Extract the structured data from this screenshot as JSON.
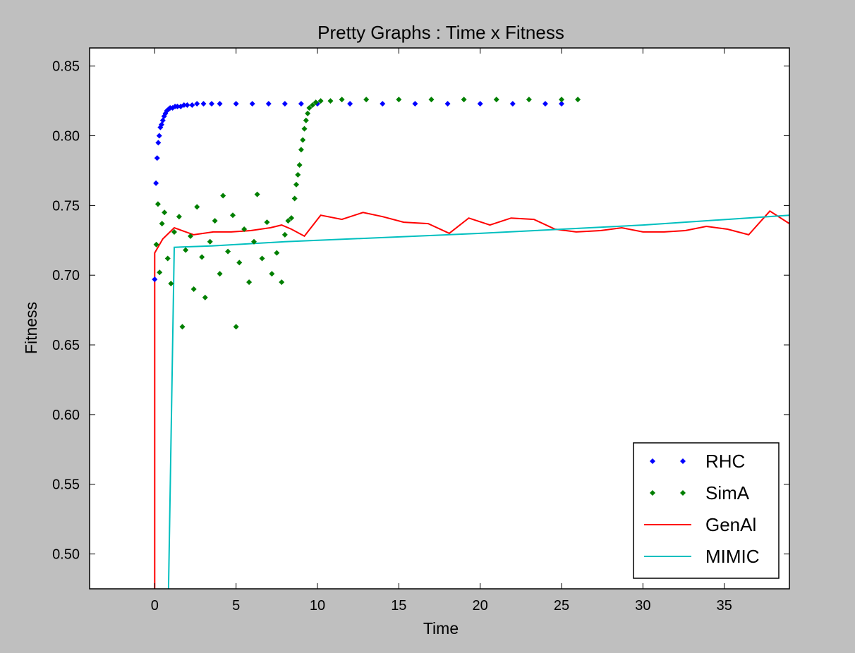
{
  "chart_data": {
    "type": "scatter",
    "title": "Pretty Graphs : Time x Fitness",
    "xlabel": "Time",
    "ylabel": "Fitness",
    "xlim": [
      -4,
      39
    ],
    "ylim": [
      0.475,
      0.863
    ],
    "xticks": [
      0,
      5,
      10,
      15,
      20,
      25,
      30,
      35
    ],
    "xtick_labels": [
      "0",
      "5",
      "10",
      "15",
      "20",
      "25",
      "30",
      "35"
    ],
    "yticks": [
      0.5,
      0.55,
      0.6,
      0.65,
      0.7,
      0.75,
      0.8,
      0.85
    ],
    "ytick_labels": [
      "0.50",
      "0.55",
      "0.60",
      "0.65",
      "0.70",
      "0.75",
      "0.80",
      "0.85"
    ],
    "grid": false,
    "legend_position": "lower-right",
    "series": [
      {
        "name": "RHC",
        "kind": "marker",
        "color": "#0000ff",
        "points": [
          [
            0.0,
            0.697
          ],
          [
            0.08,
            0.766
          ],
          [
            0.15,
            0.784
          ],
          [
            0.22,
            0.795
          ],
          [
            0.28,
            0.8
          ],
          [
            0.35,
            0.806
          ],
          [
            0.42,
            0.808
          ],
          [
            0.5,
            0.811
          ],
          [
            0.58,
            0.814
          ],
          [
            0.66,
            0.816
          ],
          [
            0.75,
            0.818
          ],
          [
            0.85,
            0.819
          ],
          [
            0.95,
            0.82
          ],
          [
            1.1,
            0.82
          ],
          [
            1.25,
            0.821
          ],
          [
            1.4,
            0.821
          ],
          [
            1.6,
            0.821
          ],
          [
            1.8,
            0.822
          ],
          [
            2.0,
            0.822
          ],
          [
            2.3,
            0.822
          ],
          [
            2.6,
            0.823
          ],
          [
            3.0,
            0.823
          ],
          [
            3.5,
            0.823
          ],
          [
            4.0,
            0.823
          ],
          [
            5.0,
            0.823
          ],
          [
            6.0,
            0.823
          ],
          [
            7.0,
            0.823
          ],
          [
            8.0,
            0.823
          ],
          [
            9.0,
            0.823
          ],
          [
            10.0,
            0.823
          ],
          [
            12.0,
            0.823
          ],
          [
            14.0,
            0.823
          ],
          [
            16.0,
            0.823
          ],
          [
            18.0,
            0.823
          ],
          [
            20.0,
            0.823
          ],
          [
            22.0,
            0.823
          ],
          [
            24.0,
            0.823
          ],
          [
            25.0,
            0.823
          ]
        ]
      },
      {
        "name": "SimA",
        "kind": "marker",
        "color": "#007f00",
        "points": [
          [
            0.1,
            0.722
          ],
          [
            0.2,
            0.751
          ],
          [
            0.3,
            0.702
          ],
          [
            0.45,
            0.737
          ],
          [
            0.6,
            0.745
          ],
          [
            0.8,
            0.712
          ],
          [
            1.0,
            0.694
          ],
          [
            1.2,
            0.731
          ],
          [
            1.5,
            0.742
          ],
          [
            1.7,
            0.663
          ],
          [
            1.9,
            0.718
          ],
          [
            2.2,
            0.728
          ],
          [
            2.4,
            0.69
          ],
          [
            2.6,
            0.749
          ],
          [
            2.9,
            0.713
          ],
          [
            3.1,
            0.684
          ],
          [
            3.4,
            0.724
          ],
          [
            3.7,
            0.739
          ],
          [
            4.0,
            0.701
          ],
          [
            4.2,
            0.757
          ],
          [
            4.5,
            0.717
          ],
          [
            4.8,
            0.743
          ],
          [
            5.0,
            0.663
          ],
          [
            5.2,
            0.709
          ],
          [
            5.5,
            0.733
          ],
          [
            5.8,
            0.695
          ],
          [
            6.1,
            0.724
          ],
          [
            6.3,
            0.758
          ],
          [
            6.6,
            0.712
          ],
          [
            6.9,
            0.738
          ],
          [
            7.2,
            0.701
          ],
          [
            7.5,
            0.716
          ],
          [
            7.8,
            0.695
          ],
          [
            8.0,
            0.729
          ],
          [
            8.2,
            0.739
          ],
          [
            8.4,
            0.741
          ],
          [
            8.6,
            0.755
          ],
          [
            8.7,
            0.765
          ],
          [
            8.8,
            0.772
          ],
          [
            8.9,
            0.779
          ],
          [
            9.0,
            0.79
          ],
          [
            9.1,
            0.797
          ],
          [
            9.2,
            0.805
          ],
          [
            9.3,
            0.811
          ],
          [
            9.4,
            0.816
          ],
          [
            9.5,
            0.82
          ],
          [
            9.7,
            0.822
          ],
          [
            9.9,
            0.824
          ],
          [
            10.2,
            0.825
          ],
          [
            10.8,
            0.825
          ],
          [
            11.5,
            0.826
          ],
          [
            13.0,
            0.826
          ],
          [
            15.0,
            0.826
          ],
          [
            17.0,
            0.826
          ],
          [
            19.0,
            0.826
          ],
          [
            21.0,
            0.826
          ],
          [
            23.0,
            0.826
          ],
          [
            25.0,
            0.826
          ],
          [
            26.0,
            0.826
          ]
        ]
      },
      {
        "name": "GenAl",
        "kind": "line",
        "color": "#ff0000",
        "points": [
          [
            0.0,
            0.475
          ],
          [
            0.0,
            0.716
          ],
          [
            0.5,
            0.726
          ],
          [
            1.2,
            0.734
          ],
          [
            2.4,
            0.729
          ],
          [
            3.6,
            0.731
          ],
          [
            4.7,
            0.731
          ],
          [
            5.9,
            0.732
          ],
          [
            7.1,
            0.734
          ],
          [
            7.8,
            0.736
          ],
          [
            8.4,
            0.733
          ],
          [
            9.2,
            0.728
          ],
          [
            10.2,
            0.743
          ],
          [
            11.5,
            0.74
          ],
          [
            12.8,
            0.745
          ],
          [
            14.0,
            0.742
          ],
          [
            15.3,
            0.738
          ],
          [
            16.8,
            0.737
          ],
          [
            18.1,
            0.73
          ],
          [
            19.3,
            0.741
          ],
          [
            20.6,
            0.736
          ],
          [
            21.9,
            0.741
          ],
          [
            23.3,
            0.74
          ],
          [
            24.6,
            0.733
          ],
          [
            25.9,
            0.731
          ],
          [
            27.4,
            0.732
          ],
          [
            28.7,
            0.734
          ],
          [
            30.0,
            0.731
          ],
          [
            31.3,
            0.731
          ],
          [
            32.6,
            0.732
          ],
          [
            33.9,
            0.735
          ],
          [
            35.2,
            0.733
          ],
          [
            36.5,
            0.729
          ],
          [
            37.8,
            0.746
          ],
          [
            39.0,
            0.737
          ]
        ]
      },
      {
        "name": "MIMIC",
        "kind": "line",
        "color": "#00bfbf",
        "points": [
          [
            0.85,
            0.475
          ],
          [
            1.2,
            0.72
          ],
          [
            3.5,
            0.721
          ],
          [
            8.0,
            0.724
          ],
          [
            20.0,
            0.73
          ],
          [
            30.0,
            0.736
          ],
          [
            39.0,
            0.743
          ]
        ]
      }
    ]
  }
}
